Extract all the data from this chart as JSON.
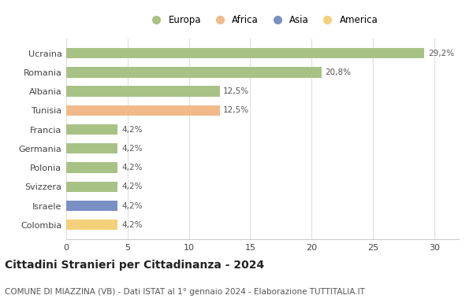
{
  "countries": [
    "Ucraina",
    "Romania",
    "Albania",
    "Tunisia",
    "Francia",
    "Germania",
    "Polonia",
    "Svizzera",
    "Israele",
    "Colombia"
  ],
  "values": [
    29.2,
    20.8,
    12.5,
    12.5,
    4.2,
    4.2,
    4.2,
    4.2,
    4.2,
    4.2
  ],
  "labels": [
    "29,2%",
    "20,8%",
    "12,5%",
    "12,5%",
    "4,2%",
    "4,2%",
    "4,2%",
    "4,2%",
    "4,2%",
    "4,2%"
  ],
  "colors": [
    "#a8c285",
    "#a8c285",
    "#a8c285",
    "#f2b98a",
    "#a8c285",
    "#a8c285",
    "#a8c285",
    "#a8c285",
    "#7a8fc4",
    "#f5d07a"
  ],
  "continents": [
    "Europa",
    "Africa",
    "Asia",
    "America"
  ],
  "legend_colors": [
    "#a8c285",
    "#f2b98a",
    "#7a8fc4",
    "#f5d07a"
  ],
  "title": "Cittadini Stranieri per Cittadinanza - 2024",
  "subtitle": "COMUNE DI MIAZZINA (VB) - Dati ISTAT al 1° gennaio 2024 - Elaborazione TUTTITALIA.IT",
  "xlim": [
    0,
    32
  ],
  "xticks": [
    0,
    5,
    10,
    15,
    20,
    25,
    30
  ],
  "background_color": "#ffffff",
  "bar_height": 0.55,
  "title_fontsize": 10,
  "subtitle_fontsize": 7.5,
  "label_fontsize": 7.5,
  "tick_fontsize": 8,
  "legend_fontsize": 8.5
}
